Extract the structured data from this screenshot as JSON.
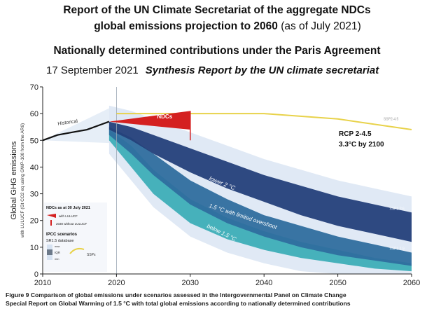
{
  "header": {
    "line1": "Report of the UN Climate Secretariat of the aggregate NDCs",
    "line2_main": "global emissions projection to 2060",
    "line2_note": "(as of July 2021)",
    "line3": "Nationally determined contributions under the Paris Agreement",
    "date": "17 September 2021",
    "subtitle": "Synthesis Report by the UN climate secretariat"
  },
  "annotation": {
    "rcp_line1": "RCP 2-4.5",
    "rcp_line2": "3.3°C by 2100"
  },
  "caption": {
    "line1": "Figure 9 Comparison of global emissions under scenarios assessed in the Intergovernmental Panel on Climate Change",
    "line2": "Special Report on Global Warming of 1.5 °C with total global emissions according to nationally determined contributions"
  },
  "legend": {
    "ndcs_title": "NDCs as at 30 July 2021",
    "ndcs_with": "with LULUCF",
    "ndcs_without": "2030 without LULUCF",
    "ipcc_title": "IPCC scenarios",
    "ipcc_sub": "SR1.5 database",
    "range_max": "max",
    "range_iqr": "IQR",
    "range_min": "min",
    "ssps": "SSPs"
  },
  "colors": {
    "historical": "#111111",
    "ndcs": "#d42020",
    "ssp": "#e8d24a",
    "lower2c": "#24407a",
    "limited_overshoot": "#2f6e9e",
    "below15": "#2aa7b0",
    "range_light": "#d6e2f1"
  },
  "chart_data": {
    "type": "area",
    "title": "",
    "xlabel": "",
    "ylabel": "Global GHG emissions",
    "ylabel_sub": "with LULUCF (Gt CO2 eq using GWP-100 from the AR6)",
    "xlim": [
      2010,
      2060
    ],
    "ylim": [
      0,
      70
    ],
    "x_ticks": [
      2010,
      2020,
      2030,
      2040,
      2050,
      2060
    ],
    "y_ticks": [
      0,
      10,
      20,
      30,
      40,
      50,
      60,
      70
    ],
    "grid": false,
    "reference_line_x": 2020,
    "series": [
      {
        "name": "Historical",
        "kind": "line",
        "x": [
          2010,
          2012,
          2014,
          2016,
          2018,
          2019
        ],
        "y": [
          50,
          52,
          53,
          54,
          56,
          57
        ]
      },
      {
        "name": "NDCs",
        "kind": "wedge",
        "x": [
          2019,
          2030
        ],
        "y_low": [
          57,
          54
        ],
        "y_high": [
          57,
          61
        ]
      },
      {
        "name": "SSP2-4.5",
        "kind": "line",
        "x": [
          2020,
          2030,
          2040,
          2050,
          2060
        ],
        "y": [
          60,
          60,
          60,
          58,
          54
        ]
      },
      {
        "name": "lower 2 °C",
        "kind": "band",
        "x": [
          2019,
          2022,
          2025,
          2030,
          2035,
          2040,
          2045,
          2050,
          2055,
          2060
        ],
        "y_low": [
          54,
          50,
          45,
          38,
          32,
          27,
          22,
          18,
          15,
          12
        ],
        "y_high": [
          57,
          55,
          52,
          47,
          42,
          37,
          33,
          29,
          26,
          23
        ]
      },
      {
        "name": "1.5 °C with limited overshoot",
        "kind": "band",
        "x": [
          2019,
          2022,
          2025,
          2030,
          2035,
          2040,
          2045,
          2050,
          2055,
          2060
        ],
        "y_low": [
          52,
          45,
          37,
          26,
          19,
          14,
          10,
          7,
          5,
          3
        ],
        "y_high": [
          55,
          51,
          45,
          35,
          28,
          22,
          18,
          14,
          11,
          8
        ]
      },
      {
        "name": "below 1.5 °C",
        "kind": "band",
        "x": [
          2019,
          2022,
          2025,
          2030,
          2035,
          2040,
          2045,
          2050,
          2055,
          2060
        ],
        "y_low": [
          50,
          40,
          30,
          19,
          13,
          9,
          6,
          4,
          2,
          1
        ],
        "y_high": [
          54,
          48,
          39,
          28,
          21,
          16,
          12,
          9,
          6,
          4
        ]
      }
    ],
    "labels": {
      "historical": "Historical",
      "ndcs": "NDCs",
      "ssp245": "SSP2-4.5",
      "ssp126": "SSP1-2.6",
      "ssp119": "SSP1-1.9",
      "lower2c": "lower 2 °C",
      "overshoot": "1.5 °C with limited overshoot",
      "below15": "below 1.5 °C"
    }
  }
}
